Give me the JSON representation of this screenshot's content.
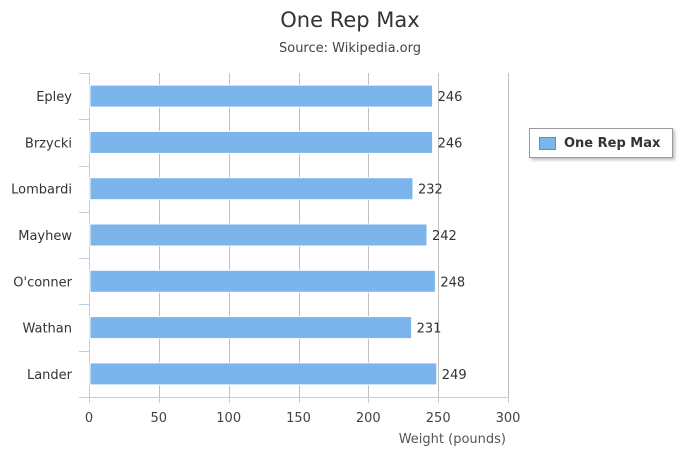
{
  "chart_data": {
    "type": "bar",
    "orientation": "horizontal",
    "title": "One Rep Max",
    "subtitle": "Source: Wikipedia.org",
    "categories": [
      "Epley",
      "Brzycki",
      "Lombardi",
      "Mayhew",
      "O'conner",
      "Wathan",
      "Lander"
    ],
    "series": [
      {
        "name": "One Rep Max",
        "values": [
          246,
          246,
          232,
          242,
          248,
          231,
          249
        ],
        "color": "#7cb5ec"
      }
    ],
    "xlabel": "Weight (pounds)",
    "ylabel": "",
    "value_axis": {
      "range": [
        0,
        300
      ],
      "ticks": [
        0,
        50,
        100,
        150,
        200,
        250,
        300
      ]
    },
    "data_labels": true,
    "grid": true,
    "legend": "right"
  }
}
